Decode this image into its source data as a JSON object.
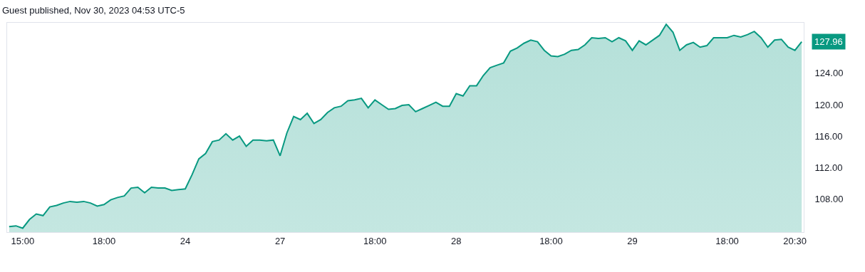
{
  "chart_data": {
    "type": "area",
    "title": "Guest published, Nov 30, 2023 04:53 UTC-5",
    "categories": [
      null,
      null,
      "15:00",
      null,
      null,
      null,
      null,
      null,
      null,
      null,
      null,
      null,
      null,
      null,
      "18:00",
      null,
      null,
      null,
      null,
      null,
      null,
      null,
      null,
      null,
      null,
      null,
      "24",
      null,
      null,
      null,
      null,
      null,
      null,
      null,
      null,
      null,
      null,
      null,
      null,
      null,
      "27",
      null,
      null,
      null,
      null,
      null,
      null,
      null,
      null,
      null,
      null,
      null,
      null,
      null,
      "18:00",
      null,
      null,
      null,
      null,
      null,
      null,
      null,
      null,
      null,
      null,
      null,
      "28",
      null,
      null,
      null,
      null,
      null,
      null,
      null,
      null,
      null,
      null,
      null,
      null,
      null,
      "18:00",
      null,
      null,
      null,
      null,
      null,
      null,
      null,
      null,
      null,
      null,
      null,
      "29",
      null,
      null,
      null,
      null,
      null,
      null,
      null,
      null,
      null,
      null,
      null,
      null,
      null,
      "18:00",
      null,
      null,
      null,
      null,
      null,
      null,
      null,
      null,
      null,
      "20:30",
      null
    ],
    "series": [
      {
        "color": "#089981",
        "values": [
          104.5,
          104.6,
          104.3,
          105.4,
          106.1,
          105.9,
          107.0,
          107.2,
          107.5,
          107.7,
          107.6,
          107.7,
          107.5,
          107.1,
          107.3,
          107.9,
          108.2,
          108.4,
          109.4,
          109.5,
          108.8,
          109.5,
          109.4,
          109.4,
          109.1,
          109.2,
          109.3,
          111.1,
          113.1,
          113.8,
          115.3,
          115.5,
          116.3,
          115.5,
          116.0,
          114.7,
          115.5,
          115.5,
          115.4,
          115.5,
          113.5,
          116.4,
          118.5,
          118.1,
          118.9,
          117.6,
          118.1,
          119.0,
          119.6,
          119.8,
          120.5,
          120.6,
          120.8,
          119.6,
          120.6,
          120.0,
          119.4,
          119.5,
          119.9,
          120.0,
          119.1,
          119.5,
          119.9,
          120.3,
          119.8,
          119.8,
          121.4,
          121.1,
          122.4,
          122.4,
          123.7,
          124.7,
          125.0,
          125.3,
          126.8,
          127.2,
          127.8,
          128.2,
          128.0,
          126.9,
          126.2,
          126.1,
          126.4,
          126.9,
          127.0,
          127.6,
          128.5,
          128.4,
          128.5,
          128.0,
          128.5,
          128.1,
          126.9,
          128.1,
          127.6,
          128.2,
          128.8,
          130.2,
          129.2,
          126.9,
          127.6,
          127.9,
          127.3,
          127.5,
          128.5,
          128.5,
          128.5,
          128.8,
          128.6,
          128.9,
          129.3,
          128.5,
          127.3,
          128.2,
          128.3,
          127.3,
          126.9,
          128.0
        ]
      }
    ],
    "annotations": [
      "127.96"
    ],
    "ylim": [
      103.8,
      130.4
    ],
    "yticks": [
      {
        "value": 108,
        "label": "108.00"
      },
      {
        "value": 112,
        "label": "112.00"
      },
      {
        "value": 116,
        "label": "116.00"
      },
      {
        "value": 120,
        "label": "120.00"
      },
      {
        "value": 124,
        "label": "124.00"
      }
    ]
  }
}
